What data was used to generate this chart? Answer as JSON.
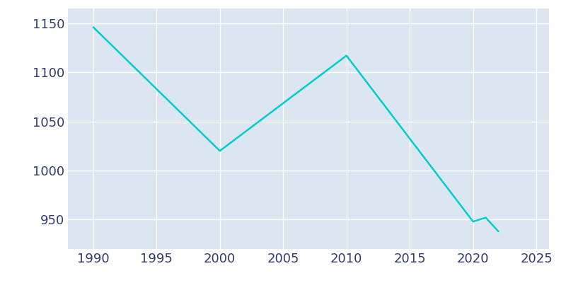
{
  "years": [
    1990,
    2000,
    2010,
    2020,
    2021,
    2022
  ],
  "population": [
    1146,
    1020,
    1117,
    948,
    952,
    938
  ],
  "line_color": "#00CDCD",
  "line_width": 1.8,
  "fig_bg_color": "#ffffff",
  "plot_bg_color": "#dce6f0",
  "grid_color": "#ffffff",
  "tick_color": "#2e3c6e",
  "xlim": [
    1988,
    2026
  ],
  "ylim": [
    920,
    1165
  ],
  "xticks": [
    1990,
    1995,
    2000,
    2005,
    2010,
    2015,
    2020,
    2025
  ],
  "yticks": [
    950,
    1000,
    1050,
    1100,
    1150
  ],
  "tick_fontsize": 13
}
